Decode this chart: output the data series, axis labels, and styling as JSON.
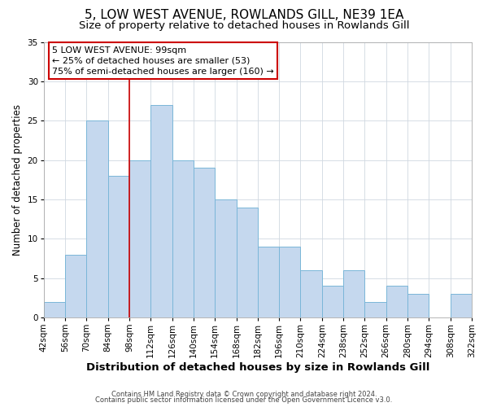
{
  "title": "5, LOW WEST AVENUE, ROWLANDS GILL, NE39 1EA",
  "subtitle": "Size of property relative to detached houses in Rowlands Gill",
  "xlabel": "Distribution of detached houses by size in Rowlands Gill",
  "ylabel": "Number of detached properties",
  "bin_edges": [
    42,
    56,
    70,
    84,
    98,
    112,
    126,
    140,
    154,
    168,
    182,
    196,
    210,
    224,
    238,
    252,
    266,
    280,
    294,
    308,
    322
  ],
  "counts": [
    2,
    8,
    25,
    18,
    20,
    27,
    20,
    19,
    15,
    14,
    9,
    9,
    6,
    4,
    6,
    2,
    4,
    3,
    0,
    3
  ],
  "tick_labels": [
    "42sqm",
    "56sqm",
    "70sqm",
    "84sqm",
    "98sqm",
    "112sqm",
    "126sqm",
    "140sqm",
    "154sqm",
    "168sqm",
    "182sqm",
    "196sqm",
    "210sqm",
    "224sqm",
    "238sqm",
    "252sqm",
    "266sqm",
    "280sqm",
    "294sqm",
    "308sqm",
    "322sqm"
  ],
  "bar_color": "#c5d8ee",
  "bar_edge_color": "#7ab6d8",
  "grid_color": "#d0d8e0",
  "vline_x": 98,
  "vline_color": "#cc0000",
  "annotation_box_text": "5 LOW WEST AVENUE: 99sqm\n← 25% of detached houses are smaller (53)\n75% of semi-detached houses are larger (160) →",
  "ylim": [
    0,
    35
  ],
  "yticks": [
    0,
    5,
    10,
    15,
    20,
    25,
    30,
    35
  ],
  "footer1": "Contains HM Land Registry data © Crown copyright and database right 2024.",
  "footer2": "Contains public sector information licensed under the Open Government Licence v3.0.",
  "title_fontsize": 11,
  "subtitle_fontsize": 9.5,
  "xlabel_fontsize": 9.5,
  "ylabel_fontsize": 8.5,
  "tick_fontsize": 7.5,
  "annot_fontsize": 8,
  "footer_fontsize": 6
}
